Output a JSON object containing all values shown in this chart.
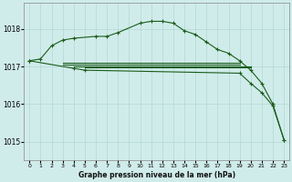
{
  "background_color": "#d0ecea",
  "grid_color": "#b2d8d4",
  "line_color": "#1a5c1a",
  "title": "Graphe pression niveau de la mer (hPa)",
  "xlim": [
    -0.5,
    23.5
  ],
  "ylim": [
    1014.5,
    1018.7
  ],
  "yticks": [
    1015,
    1016,
    1017,
    1018
  ],
  "curve_upper_x": [
    0,
    1,
    2,
    3,
    4,
    6,
    7,
    8,
    10,
    11,
    12,
    13,
    14,
    15,
    16,
    17,
    18,
    19,
    20,
    21,
    22,
    23
  ],
  "curve_upper_y": [
    1017.15,
    1017.2,
    1017.55,
    1017.7,
    1017.75,
    1017.8,
    1017.8,
    1017.9,
    1018.15,
    1018.2,
    1018.2,
    1018.15,
    1017.95,
    1017.85,
    1017.65,
    1017.45,
    1017.35,
    1017.15,
    1016.9,
    1016.55,
    1016.0,
    1015.05
  ],
  "curve_lower_x": [
    0,
    4,
    5,
    19,
    20,
    21,
    22,
    23
  ],
  "curve_lower_y": [
    1017.15,
    1016.95,
    1016.9,
    1016.82,
    1016.55,
    1016.3,
    1015.95,
    1015.05
  ],
  "hline1_x": [
    3,
    19
  ],
  "hline1_y": 1017.1,
  "hline2_x": [
    3,
    19
  ],
  "hline2_y": 1017.05,
  "hline3_x": [
    4,
    20
  ],
  "hline3_y": 1017.0,
  "hline4_x": [
    5,
    20
  ],
  "hline4_y": 1016.97,
  "figsize": [
    3.2,
    2.0
  ],
  "dpi": 100
}
